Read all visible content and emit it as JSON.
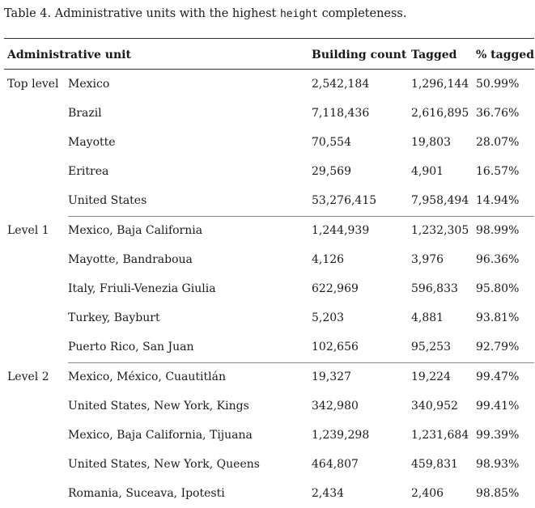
{
  "caption": {
    "label": "Table 4.",
    "before": "Administrative units with the highest",
    "code": "height",
    "after": "completeness."
  },
  "table": {
    "headers": {
      "unit": "Administrative unit",
      "building_count": "Building count",
      "tagged": "Tagged",
      "pct": "% tagged"
    },
    "groups": [
      {
        "level": "Top level",
        "rows": [
          {
            "unit": "Mexico",
            "building_count": "2,542,184",
            "tagged": "1,296,144",
            "pct": "50.99%"
          },
          {
            "unit": "Brazil",
            "building_count": "7,118,436",
            "tagged": "2,616,895",
            "pct": "36.76%"
          },
          {
            "unit": "Mayotte",
            "building_count": "70,554",
            "tagged": "19,803",
            "pct": "28.07%"
          },
          {
            "unit": "Eritrea",
            "building_count": "29,569",
            "tagged": "4,901",
            "pct": "16.57%"
          },
          {
            "unit": "United States",
            "building_count": "53,276,415",
            "tagged": "7,958,494",
            "pct": "14.94%"
          }
        ]
      },
      {
        "level": "Level 1",
        "rows": [
          {
            "unit": "Mexico, Baja California",
            "building_count": "1,244,939",
            "tagged": "1,232,305",
            "pct": "98.99%"
          },
          {
            "unit": "Mayotte, Bandraboua",
            "building_count": "4,126",
            "tagged": "3,976",
            "pct": "96.36%"
          },
          {
            "unit": "Italy, Friuli-Venezia Giulia",
            "building_count": "622,969",
            "tagged": "596,833",
            "pct": "95.80%"
          },
          {
            "unit": "Turkey, Bayburt",
            "building_count": "5,203",
            "tagged": "4,881",
            "pct": "93.81%"
          },
          {
            "unit": "Puerto Rico, San Juan",
            "building_count": "102,656",
            "tagged": "95,253",
            "pct": "92.79%"
          }
        ]
      },
      {
        "level": "Level 2",
        "rows": [
          {
            "unit": "Mexico, México, Cuautitlán",
            "building_count": "19,327",
            "tagged": "19,224",
            "pct": "99.47%"
          },
          {
            "unit": "United States, New York, Kings",
            "building_count": "342,980",
            "tagged": "340,952",
            "pct": "99.41%"
          },
          {
            "unit": "Mexico, Baja California, Tijuana",
            "building_count": "1,239,298",
            "tagged": "1,231,684",
            "pct": "99.39%"
          },
          {
            "unit": "United States, New York, Queens",
            "building_count": "464,807",
            "tagged": "459,831",
            "pct": "98.93%"
          },
          {
            "unit": "Romania, Suceava, Ipotesti",
            "building_count": "2,434",
            "tagged": "2,406",
            "pct": "98.85%"
          }
        ]
      }
    ]
  }
}
